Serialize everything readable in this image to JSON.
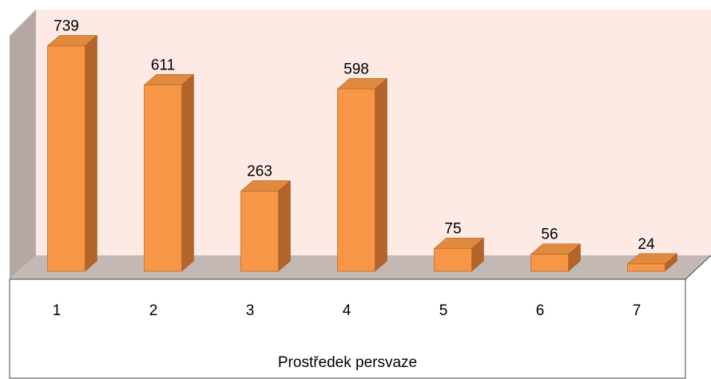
{
  "chart_data": {
    "type": "bar3d",
    "categories": [
      "1",
      "2",
      "3",
      "4",
      "5",
      "6",
      "7"
    ],
    "values": [
      739,
      611,
      263,
      598,
      75,
      56,
      24
    ],
    "x_label": "Prostředek persvaze",
    "color": "#f79646",
    "ylim": [
      0,
      800
    ]
  }
}
